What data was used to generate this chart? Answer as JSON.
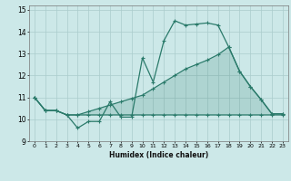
{
  "xlabel": "Humidex (Indice chaleur)",
  "background_color": "#cce8e8",
  "grid_color": "#aacccc",
  "line_color": "#2a7a6a",
  "y_main": [
    11.0,
    10.4,
    10.4,
    10.2,
    9.6,
    9.9,
    9.9,
    10.8,
    10.1,
    10.1,
    12.8,
    11.7,
    13.6,
    14.5,
    14.3,
    14.35,
    14.4,
    14.3,
    13.3,
    12.2,
    11.5,
    10.9,
    10.25,
    10.25
  ],
  "y_upper": [
    11.0,
    10.4,
    10.4,
    10.2,
    10.2,
    10.35,
    10.5,
    10.65,
    10.8,
    10.95,
    11.1,
    11.4,
    11.7,
    12.0,
    12.3,
    12.5,
    12.7,
    12.95,
    13.3,
    12.2,
    11.5,
    10.9,
    10.25,
    10.25
  ],
  "y_lower": [
    11.0,
    10.4,
    10.4,
    10.2,
    10.2,
    10.2,
    10.2,
    10.2,
    10.2,
    10.2,
    10.2,
    10.2,
    10.2,
    10.2,
    10.2,
    10.2,
    10.2,
    10.2,
    10.2,
    10.2,
    10.2,
    10.2,
    10.2,
    10.2
  ],
  "x_values": [
    0,
    1,
    2,
    3,
    4,
    5,
    6,
    7,
    8,
    9,
    10,
    11,
    12,
    13,
    14,
    15,
    16,
    17,
    18,
    19,
    20,
    21,
    22,
    23
  ],
  "ylim": [
    9.0,
    15.2
  ],
  "xlim": [
    -0.5,
    23.5
  ],
  "yticks": [
    9,
    10,
    11,
    12,
    13,
    14,
    15
  ],
  "xtick_labels": [
    "0",
    "1",
    "2",
    "3",
    "4",
    "5",
    "6",
    "7",
    "8",
    "9",
    "10",
    "11",
    "12",
    "13",
    "14",
    "15",
    "16",
    "17",
    "18",
    "19",
    "20",
    "21",
    "22",
    "23"
  ]
}
